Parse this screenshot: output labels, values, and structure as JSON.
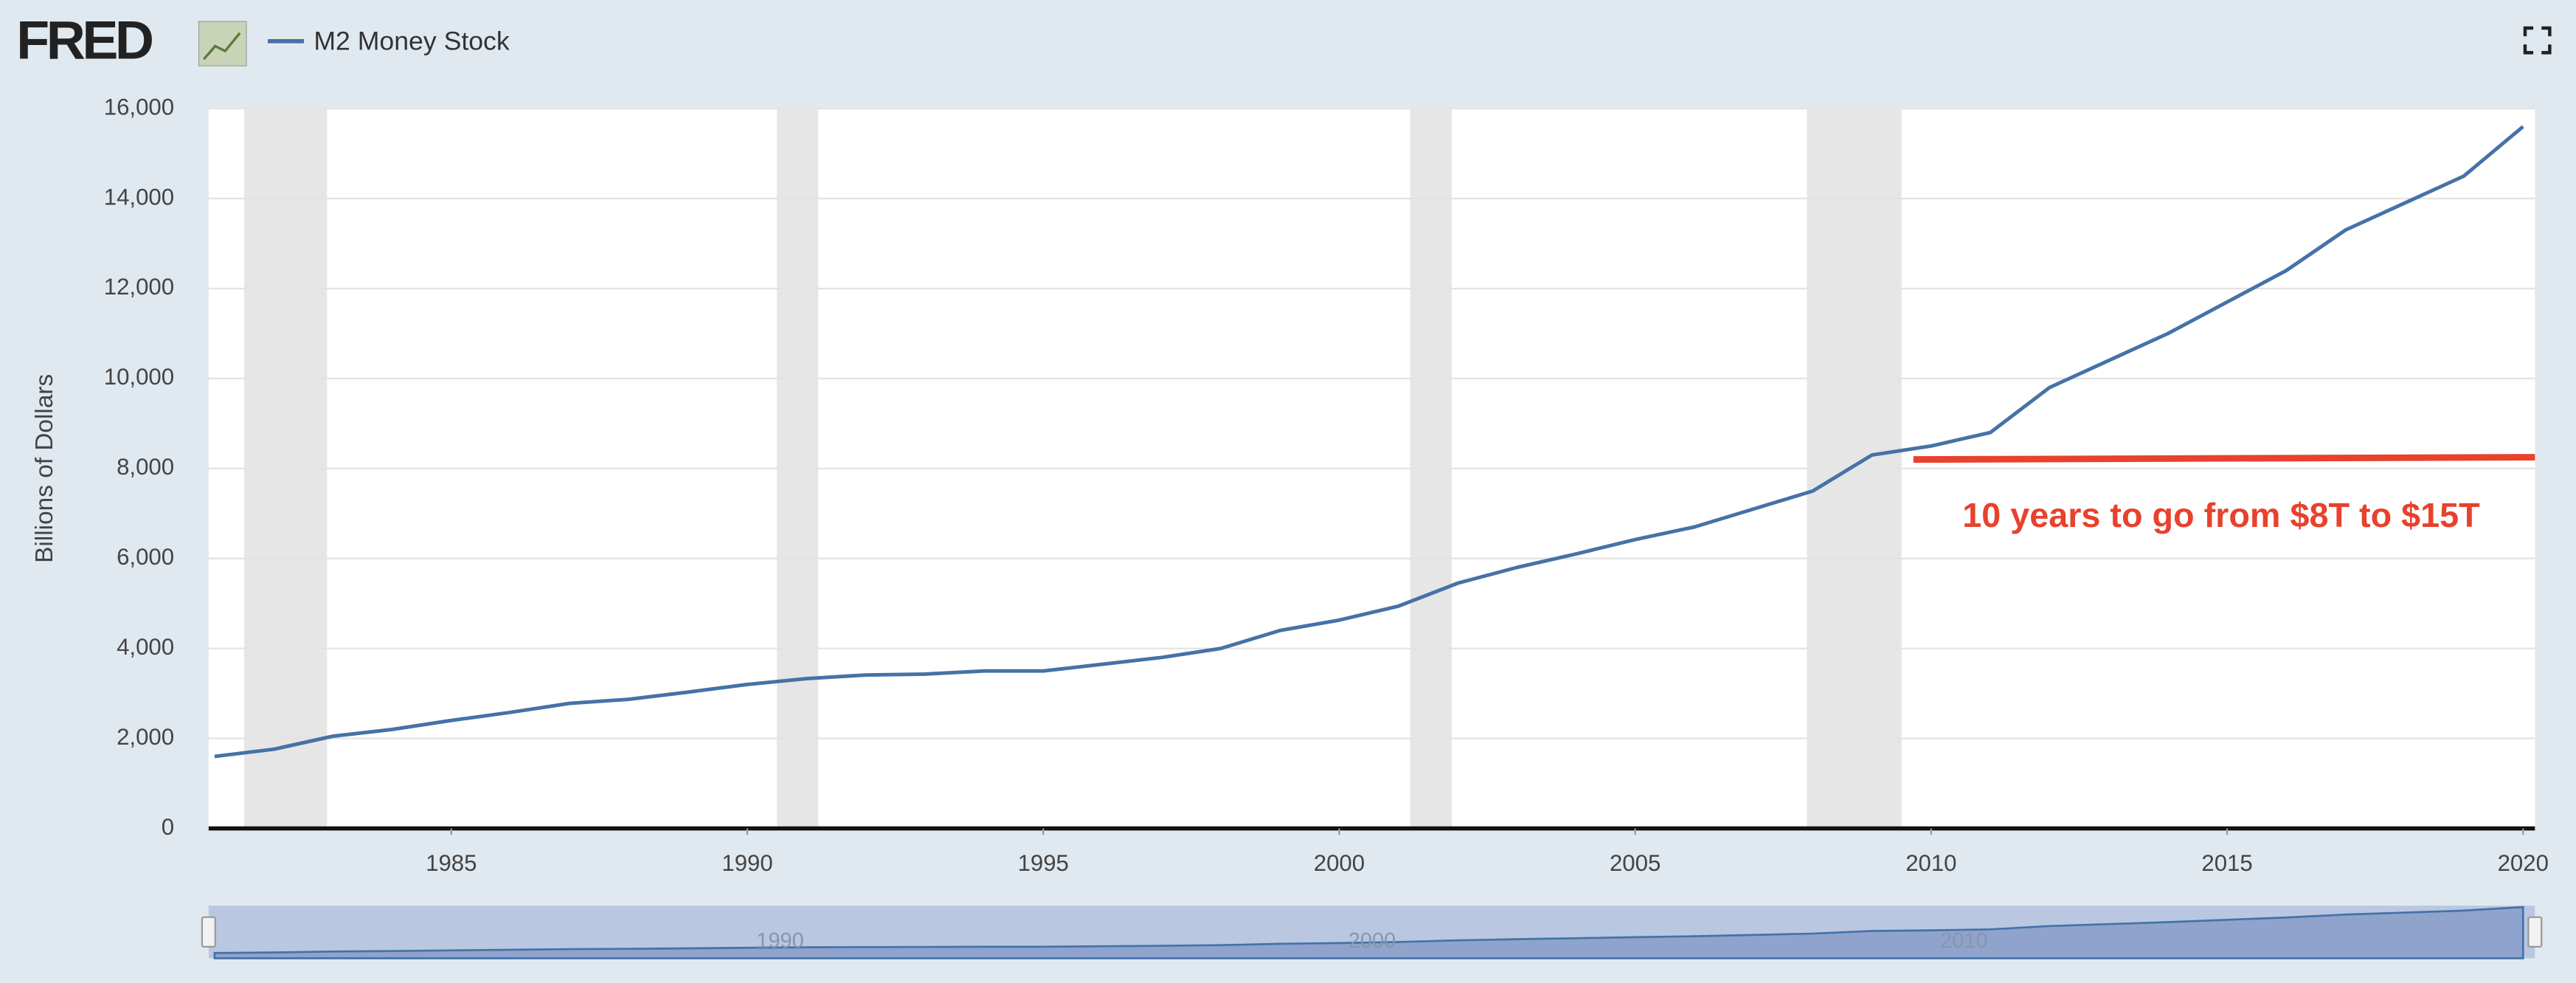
{
  "header": {
    "logo": "FRED"
  },
  "chart_data": {
    "type": "line",
    "y_label": "Billions of Dollars",
    "series": [
      {
        "name": "M2 Money Stock",
        "color": "#4572a7",
        "x": [
          1981,
          1982,
          1983,
          1984,
          1985,
          1986,
          1987,
          1988,
          1989,
          1990,
          1991,
          1992,
          1993,
          1994,
          1995,
          1996,
          1997,
          1998,
          1999,
          2000,
          2001,
          2002,
          2003,
          2004,
          2005,
          2006,
          2007,
          2008,
          2009,
          2010,
          2011,
          2012,
          2013,
          2014,
          2015,
          2016,
          2017,
          2018,
          2019,
          2020
        ],
        "values": [
          1600,
          1760,
          2050,
          2200,
          2400,
          2580,
          2780,
          2870,
          3030,
          3200,
          3330,
          3410,
          3430,
          3500,
          3500,
          3650,
          3800,
          4000,
          4400,
          4630,
          4940,
          5450,
          5800,
          6100,
          6420,
          6700,
          7100,
          7500,
          8300,
          8500,
          8800,
          9800,
          10400,
          11000,
          11700,
          12400,
          13300,
          13900,
          14500,
          15600
        ]
      }
    ],
    "recessions": [
      [
        1981.5,
        1982.9
      ],
      [
        1990.5,
        1991.2
      ],
      [
        2001.2,
        2001.9
      ],
      [
        2007.9,
        2009.5
      ]
    ],
    "xlim": [
      1980.9,
      2020.2
    ],
    "xticks": [
      1985,
      1990,
      1995,
      2000,
      2005,
      2010,
      2015,
      2020
    ],
    "ylim": [
      0,
      16000
    ],
    "yticks": [
      0,
      {
        "value": 2000,
        "label": "2,000"
      },
      {
        "value": 4000,
        "label": "4,000"
      },
      {
        "value": 6000,
        "label": "6,000"
      },
      {
        "value": 8000,
        "label": "8,000"
      },
      {
        "value": 10000,
        "label": "10,000"
      },
      {
        "value": 12000,
        "label": "12,000"
      },
      {
        "value": 14000,
        "label": "14,000"
      },
      {
        "value": 16000,
        "label": "16,000"
      }
    ],
    "grid": true,
    "annotation": {
      "text": "10 years to go from $8T to $15T",
      "color": "#e8412c",
      "x": [
        2009.7,
        2020.2
      ],
      "values": [
        8200,
        8250
      ]
    },
    "navigator_xticks": [
      1990,
      2000,
      2010
    ]
  }
}
